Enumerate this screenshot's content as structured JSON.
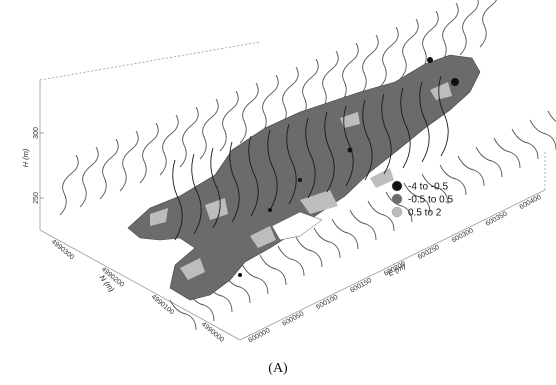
{
  "chart_data": {
    "type": "surface",
    "caption": "(A)",
    "z_axis": {
      "label": "H (m)",
      "ticks": [
        "250",
        "300"
      ]
    },
    "x_axis": {
      "label": "E (m)",
      "ticks": [
        "600000",
        "600050",
        "600100",
        "600150",
        "600200",
        "600250",
        "600300",
        "600350",
        "600400"
      ]
    },
    "y_axis": {
      "label": "N (m)",
      "ticks": [
        "4990000",
        "4990100",
        "4990200",
        "4990300"
      ]
    },
    "legend": {
      "placement": "right",
      "entries": [
        {
          "label": "-4  to  -0.5",
          "color": "#111111"
        },
        {
          "label": "-0.5  to  0.5",
          "color": "#6b6b6b"
        },
        {
          "label": "0.5  to  2",
          "color": "#bdbdbd"
        }
      ]
    }
  }
}
